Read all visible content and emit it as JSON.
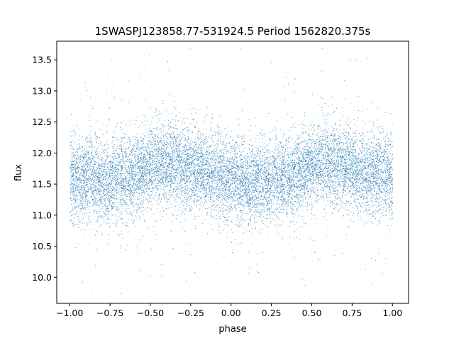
{
  "chart_data": {
    "type": "scatter",
    "title": "1SWASPJ123858.77-531924.5 Period 1562820.375s",
    "xlabel": "phase",
    "ylabel": "flux",
    "xlim": [
      -1.08,
      1.1
    ],
    "ylim": [
      9.58,
      13.8
    ],
    "xticks": [
      -1.0,
      -0.75,
      -0.5,
      -0.25,
      0.0,
      0.25,
      0.5,
      0.75,
      1.0
    ],
    "xtick_labels": [
      "−1.00",
      "−0.75",
      "−0.50",
      "−0.25",
      "0.00",
      "0.25",
      "0.50",
      "0.75",
      "1.00"
    ],
    "yticks": [
      10.0,
      10.5,
      11.0,
      11.5,
      12.0,
      12.5,
      13.0,
      13.5
    ],
    "ytick_labels": [
      "10.0",
      "10.5",
      "11.0",
      "11.5",
      "12.0",
      "12.5",
      "13.0",
      "13.5"
    ],
    "grid": false,
    "marker_color": "#1f77b4",
    "series": [
      {
        "name": "",
        "x_range": [
          -1.0,
          1.0
        ],
        "point_count": 12000,
        "mean_flux_profile": [
          {
            "phase": -1.0,
            "flux": 11.6
          },
          {
            "phase": -0.75,
            "flux": 11.55
          },
          {
            "phase": -0.6,
            "flux": 11.65
          },
          {
            "phase": -0.45,
            "flux": 11.85
          },
          {
            "phase": -0.3,
            "flux": 11.8
          },
          {
            "phase": -0.15,
            "flux": 11.7
          },
          {
            "phase": 0.0,
            "flux": 11.6
          },
          {
            "phase": 0.1,
            "flux": 11.5
          },
          {
            "phase": 0.25,
            "flux": 11.55
          },
          {
            "phase": 0.4,
            "flux": 11.65
          },
          {
            "phase": 0.55,
            "flux": 11.85
          },
          {
            "phase": 0.7,
            "flux": 11.8
          },
          {
            "phase": 0.85,
            "flux": 11.7
          },
          {
            "phase": 1.0,
            "flux": 11.6
          }
        ],
        "scatter_sigma": 0.33
      }
    ]
  }
}
